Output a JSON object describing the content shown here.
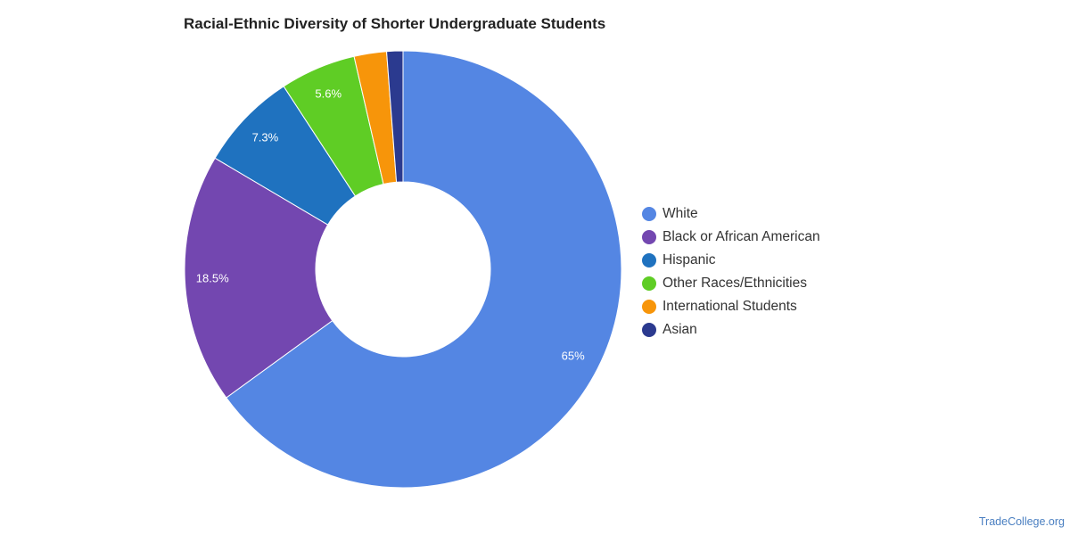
{
  "chart_data": {
    "type": "pie",
    "title": "Racial-Ethnic Diversity of Shorter Undergraduate Students",
    "donut": true,
    "legend_position": "right",
    "slices": [
      {
        "name": "White",
        "value": 65,
        "label": "65%",
        "color": "#5486e3"
      },
      {
        "name": "Black or African American",
        "value": 18.5,
        "label": "18.5%",
        "color": "#7347b0"
      },
      {
        "name": "Hispanic",
        "value": 7.3,
        "label": "7.3%",
        "color": "#1f72bf"
      },
      {
        "name": "Other Races/Ethnicities",
        "value": 5.6,
        "label": "5.6%",
        "color": "#5fcd25"
      },
      {
        "name": "International Students",
        "value": 2.4,
        "label": "",
        "color": "#f7950a"
      },
      {
        "name": "Asian",
        "value": 1.2,
        "label": "",
        "color": "#2b3a8f"
      }
    ]
  },
  "footer": {
    "credit": "TradeCollege.org"
  }
}
